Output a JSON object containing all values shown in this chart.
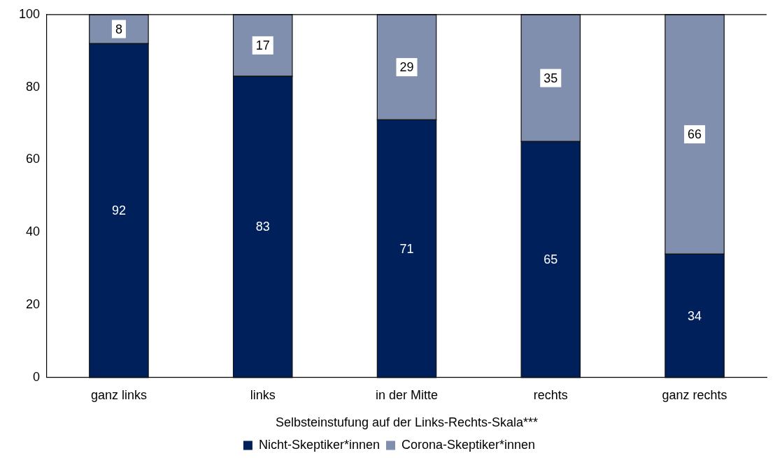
{
  "chart_data": {
    "type": "bar",
    "stacked": true,
    "xlabel": "Selbsteinstufung auf der Links-Rechts-Skala***",
    "categories": [
      "ganz links",
      "links",
      "in der Mitte",
      "rechts",
      "ganz rechts"
    ],
    "series": [
      {
        "name": "Nicht-Skeptiker*innen",
        "color": "#00205b",
        "values": [
          92,
          83,
          71,
          65,
          34
        ]
      },
      {
        "name": "Corona-Skeptiker*innen",
        "color": "#808fad",
        "values": [
          8,
          17,
          29,
          35,
          66
        ]
      }
    ],
    "ylim": [
      0,
      100
    ],
    "yticks": [
      0,
      20,
      40,
      60,
      80,
      100
    ],
    "grid": false,
    "legend": "bottom",
    "data_labels": true
  }
}
